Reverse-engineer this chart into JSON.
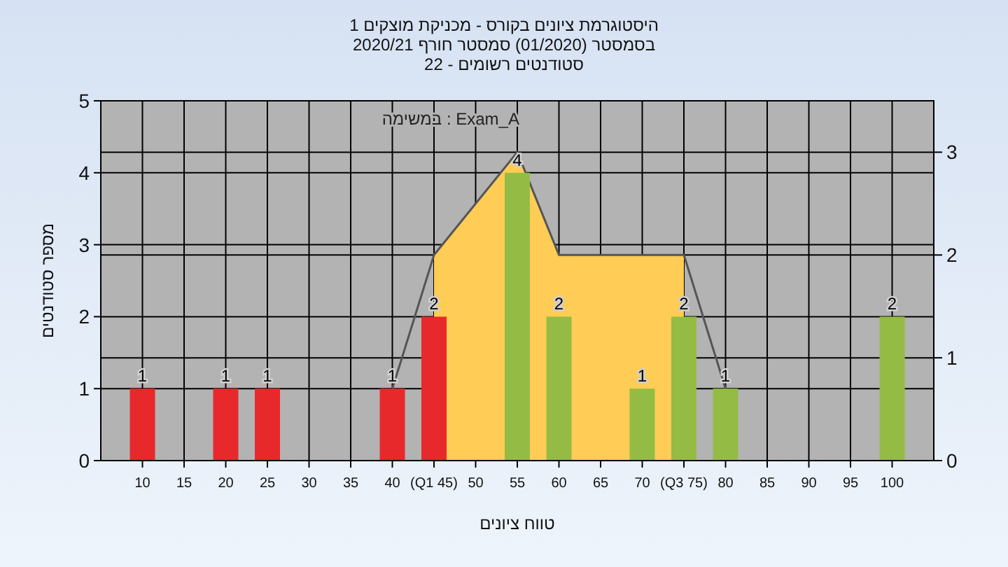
{
  "chart_data": {
    "type": "bar",
    "title": "היסטוגרמת ציונים בקורס - מכניקת מוצקים 1",
    "subtitle": "בסמסטר  (01/2020)  סמסטר חורף 2020/21\nסטודנטים רשומים - 22",
    "xlabel": "טווח ציונים",
    "ylabel": "מספר סטודנטים",
    "annotations": [
      "במשימה : Exam_A"
    ],
    "xlim": [
      5,
      105
    ],
    "xticks": [
      10,
      15,
      20,
      25,
      30,
      35,
      40,
      {
        "value": 45,
        "label": "(Q1 45)"
      },
      50,
      55,
      60,
      65,
      70,
      {
        "value": 75,
        "label": "(Q3 75)"
      },
      80,
      85,
      90,
      95,
      100
    ],
    "ylim": [
      0,
      5
    ],
    "yticks": [
      0,
      1,
      2,
      3,
      4,
      5
    ],
    "y2lim": [
      0,
      3.5
    ],
    "y2ticks": [
      0,
      1,
      2,
      3
    ],
    "grid": true,
    "series": [
      {
        "type": "area",
        "axis": "y2",
        "x": [
          45,
          55,
          60,
          75
        ],
        "values": [
          2,
          3,
          2,
          2
        ],
        "color": "#ffcc55"
      },
      {
        "type": "line",
        "axis": "y2",
        "x": [
          40,
          45,
          55,
          60,
          75,
          80
        ],
        "values": [
          0.7,
          2,
          3,
          2,
          2,
          0.7
        ],
        "color": "#555555"
      },
      {
        "x": [
          10,
          20,
          25,
          40,
          45,
          55,
          60,
          70,
          75,
          80,
          100
        ],
        "values": [
          1,
          1,
          1,
          1,
          2,
          4,
          2,
          1,
          2,
          1,
          2
        ],
        "value_labels": [
          "1",
          "1",
          "1",
          "1",
          "2",
          "4",
          "2",
          "1",
          "2",
          "1",
          "2"
        ],
        "colors": [
          "#e8292b",
          "#e8292b",
          "#e8292b",
          "#e8292b",
          "#e8292b",
          "#94bc44",
          "#94bc44",
          "#94bc44",
          "#94bc44",
          "#94bc44",
          "#94bc44"
        ]
      }
    ]
  }
}
